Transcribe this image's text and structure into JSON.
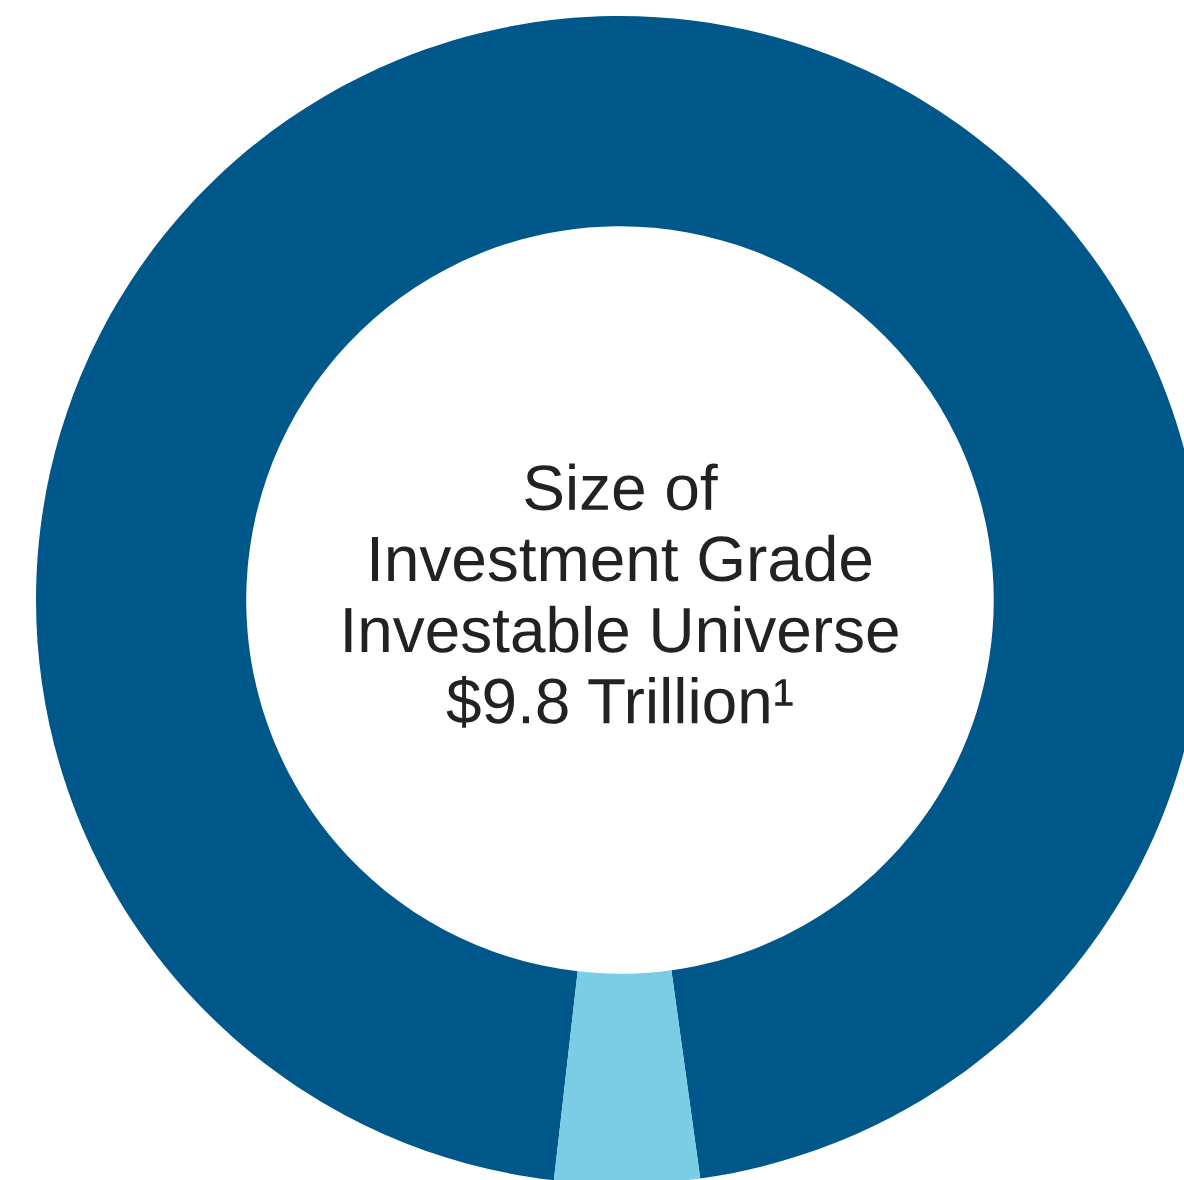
{
  "chart_data": {
    "type": "donut",
    "categories": [
      null,
      null
    ],
    "values": [
      96,
      4
    ],
    "colors": [
      "#00578a",
      "#7bcde6"
    ],
    "annotations": [
      "Size of\nInvestment Grade\nInvestable Universe\n$9.8 Trillion¹"
    ]
  }
}
